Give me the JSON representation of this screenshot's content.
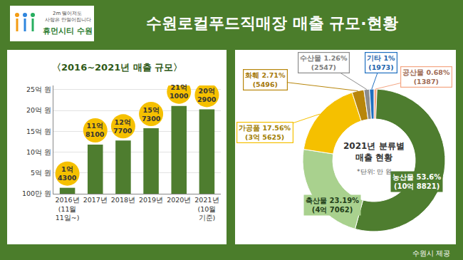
{
  "header": {
    "title": "수원로컬푸드직매장 매출 규모·현황",
    "logo": [
      "2m 떨어져도",
      "사랑은 안멀어집니다",
      "휴먼시티 수원"
    ]
  },
  "source": "수원시 제공",
  "chart_data": [
    {
      "type": "bar",
      "title": "〈2016~2021년 매출 규모〉",
      "categories": [
        "2016년\n(11월\n11일~)",
        "2017년",
        "2018년",
        "2019년",
        "2020년",
        "2021년\n(10월\n기준)"
      ],
      "values": [
        14300,
        118100,
        127700,
        157300,
        211000,
        202900
      ],
      "value_labels": [
        "1억\n4300",
        "11억\n8100",
        "12억\n7700",
        "15억\n7300",
        "21억\n1000",
        "20억\n2900"
      ],
      "color": "#4e7d2f",
      "ylim": [
        0,
        260000
      ],
      "yticks": [
        {
          "value": 100,
          "label": "100만 원"
        },
        {
          "value": 50000,
          "label": "5억 원"
        },
        {
          "value": 100000,
          "label": "10억 원"
        },
        {
          "value": 150000,
          "label": "15억 원"
        },
        {
          "value": 200000,
          "label": "20억 원"
        },
        {
          "value": 250000,
          "label": "25억 원"
        }
      ],
      "grid": true,
      "data_labels": true
    },
    {
      "type": "pie",
      "title": "2021년 분류별\n매출 현황",
      "subtitle": "*단위: 만 원",
      "categories": [
        "공산물",
        "농산물",
        "축산물",
        "가공품",
        "화훼",
        "수산물",
        "기타"
      ],
      "values": [
        0.68,
        53.6,
        23.19,
        17.56,
        2.71,
        1.26,
        1
      ],
      "value_labels": [
        "0.68%",
        "53.6%",
        "23.19%",
        "17.56%",
        "2.71%",
        "1.26%",
        "1%"
      ],
      "amounts": [
        1387,
        108821,
        47062,
        35625,
        5496,
        2547,
        1973
      ],
      "amount_labels": [
        "(1387)",
        "(10억 8821)",
        "(4억 7062)",
        "(3억 5625)",
        "(5496)",
        "(2547)",
        "(1973)"
      ],
      "colors": [
        "#f4a582",
        "#4e7d2f",
        "#a9d18e",
        "#f5c000",
        "#b8860b",
        "#8c8c8c",
        "#1f6fc0"
      ],
      "data_labels": true
    }
  ]
}
